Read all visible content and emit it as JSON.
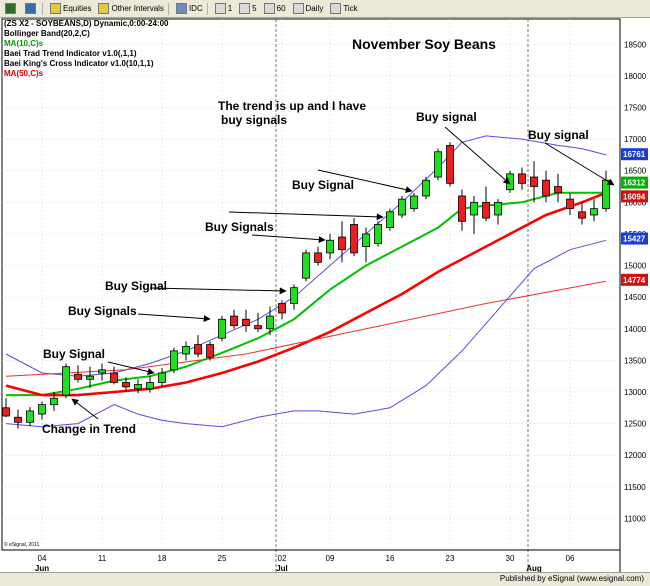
{
  "toolbar": {
    "items": [
      {
        "label": "",
        "icon": "back-arrow-icon"
      },
      {
        "label": "",
        "icon": "chart-icon"
      },
      {
        "label": "Equities",
        "icon": "folder-icon"
      },
      {
        "label": "Other Intervals",
        "icon": "folder-icon"
      },
      {
        "label": "IDC",
        "icon": "gear-icon"
      },
      {
        "label": "1",
        "icon": "clock-icon"
      },
      {
        "label": "5",
        "icon": "clock-icon"
      },
      {
        "label": "60",
        "icon": "clock-icon"
      },
      {
        "label": "Daily",
        "icon": "clock-icon"
      },
      {
        "label": "Tick",
        "icon": "clock-icon"
      }
    ]
  },
  "legend": [
    {
      "text": "(ZS X2 - SOYBEANS,D) Dynamic,0:00-24:00",
      "color": "#000000"
    },
    {
      "text": "Bollinger Band(20,2,C)",
      "color": "#000000"
    },
    {
      "text": "MA(10,C)s",
      "color": "#00a000"
    },
    {
      "text": "Baei Trad Trend Indicator v1.0(,1,1)",
      "color": "#000000"
    },
    {
      "text": "Baei King's Cross Indicator v1.0(10,1,1)",
      "color": "#000000"
    },
    {
      "text": "MA(50,C)s",
      "color": "#e00000"
    }
  ],
  "annotations": {
    "title": "November Soy Beans",
    "trend_note_1": "The trend is up and I have",
    "trend_note_2": "buy signals",
    "buy_signal_top": "Buy signal",
    "buy_signal_right": "Buy signal",
    "buy_signal_mid": "Buy Signal",
    "buy_signals_mid": "Buy Signals",
    "buy_signal_low": "Buy Signal",
    "buy_signals_low": "Buy Signals",
    "buy_signal_bottom": "Buy Signal",
    "change_in_trend": "Change in Trend"
  },
  "footer": {
    "copyright": "© eSignal, 2011",
    "publisher": "Published by eSignal (www.esignal.com)"
  },
  "chart_data": {
    "type": "candlestick",
    "title": "November Soy Beans",
    "ylim": [
      10500,
      18900
    ],
    "y_ticks": [
      11000,
      11500,
      12000,
      12500,
      13000,
      13500,
      14000,
      14500,
      15000,
      15500,
      16000,
      16500,
      17000,
      17500,
      18000,
      18500
    ],
    "y_tick_labels": [
      "11000",
      "11500",
      "12000",
      "12500",
      "13000",
      "13500",
      "14000",
      "14500",
      "15000",
      "15500",
      "16000",
      "16500",
      "17000",
      "17500",
      "18000",
      "18500"
    ],
    "x_day_labels": [
      {
        "index": 3,
        "label": "04"
      },
      {
        "index": 8,
        "label": "11"
      },
      {
        "index": 13,
        "label": "18"
      },
      {
        "index": 18,
        "label": "25"
      },
      {
        "index": 23,
        "label": "02"
      },
      {
        "index": 27,
        "label": "09"
      },
      {
        "index": 32,
        "label": "16"
      },
      {
        "index": 37,
        "label": "23"
      },
      {
        "index": 42,
        "label": "30"
      },
      {
        "index": 47,
        "label": "06"
      }
    ],
    "x_month_labels": [
      {
        "index": 3,
        "label": "Jun"
      },
      {
        "index": 23,
        "label": "Jul"
      },
      {
        "index": 44,
        "label": "Aug"
      }
    ],
    "month_separator_indices": [
      22.5,
      43.5
    ],
    "ohlc": [
      {
        "o": 12750,
        "h": 12900,
        "l": 12600,
        "c": 12620,
        "color": "red"
      },
      {
        "o": 12600,
        "h": 12720,
        "l": 12420,
        "c": 12520,
        "color": "red"
      },
      {
        "o": 12520,
        "h": 12760,
        "l": 12460,
        "c": 12700,
        "color": "green"
      },
      {
        "o": 12650,
        "h": 12850,
        "l": 12560,
        "c": 12800,
        "color": "green"
      },
      {
        "o": 12800,
        "h": 13000,
        "l": 12700,
        "c": 12900,
        "color": "green"
      },
      {
        "o": 12950,
        "h": 13450,
        "l": 12900,
        "c": 13400,
        "color": "green"
      },
      {
        "o": 13280,
        "h": 13420,
        "l": 13150,
        "c": 13200,
        "color": "red"
      },
      {
        "o": 13200,
        "h": 13400,
        "l": 13060,
        "c": 13250,
        "color": "green"
      },
      {
        "o": 13300,
        "h": 13450,
        "l": 13180,
        "c": 13350,
        "color": "green"
      },
      {
        "o": 13300,
        "h": 13400,
        "l": 13120,
        "c": 13150,
        "color": "red"
      },
      {
        "o": 13150,
        "h": 13230,
        "l": 13000,
        "c": 13080,
        "color": "red"
      },
      {
        "o": 13050,
        "h": 13200,
        "l": 12980,
        "c": 13120,
        "color": "green"
      },
      {
        "o": 13050,
        "h": 13250,
        "l": 12990,
        "c": 13150,
        "color": "green"
      },
      {
        "o": 13150,
        "h": 13380,
        "l": 13080,
        "c": 13300,
        "color": "green"
      },
      {
        "o": 13350,
        "h": 13700,
        "l": 13300,
        "c": 13650,
        "color": "green"
      },
      {
        "o": 13600,
        "h": 13800,
        "l": 13500,
        "c": 13720,
        "color": "green"
      },
      {
        "o": 13750,
        "h": 13900,
        "l": 13550,
        "c": 13600,
        "color": "red"
      },
      {
        "o": 13750,
        "h": 13800,
        "l": 13500,
        "c": 13550,
        "color": "red"
      },
      {
        "o": 13850,
        "h": 14200,
        "l": 13800,
        "c": 14150,
        "color": "green"
      },
      {
        "o": 14200,
        "h": 14300,
        "l": 14000,
        "c": 14050,
        "color": "red"
      },
      {
        "o": 14150,
        "h": 14300,
        "l": 13950,
        "c": 14050,
        "color": "red"
      },
      {
        "o": 14050,
        "h": 14250,
        "l": 13950,
        "c": 14000,
        "color": "red"
      },
      {
        "o": 14000,
        "h": 14350,
        "l": 13900,
        "c": 14200,
        "color": "green"
      },
      {
        "o": 14250,
        "h": 14450,
        "l": 14150,
        "c": 14400,
        "color": "red"
      },
      {
        "o": 14400,
        "h": 14700,
        "l": 14300,
        "c": 14650,
        "color": "green"
      },
      {
        "o": 14800,
        "h": 15250,
        "l": 14750,
        "c": 15200,
        "color": "green"
      },
      {
        "o": 15200,
        "h": 15300,
        "l": 15000,
        "c": 15050,
        "color": "red"
      },
      {
        "o": 15200,
        "h": 15500,
        "l": 15100,
        "c": 15400,
        "color": "green"
      },
      {
        "o": 15450,
        "h": 15700,
        "l": 15050,
        "c": 15250,
        "color": "red"
      },
      {
        "o": 15200,
        "h": 15750,
        "l": 15150,
        "c": 15650,
        "color": "red"
      },
      {
        "o": 15300,
        "h": 15600,
        "l": 15050,
        "c": 15500,
        "color": "green"
      },
      {
        "o": 15350,
        "h": 15700,
        "l": 15300,
        "c": 15650,
        "color": "green"
      },
      {
        "o": 15600,
        "h": 15900,
        "l": 15550,
        "c": 15850,
        "color": "green"
      },
      {
        "o": 15800,
        "h": 16100,
        "l": 15750,
        "c": 16050,
        "color": "green"
      },
      {
        "o": 15900,
        "h": 16150,
        "l": 15850,
        "c": 16100,
        "color": "green"
      },
      {
        "o": 16100,
        "h": 16400,
        "l": 16050,
        "c": 16350,
        "color": "green"
      },
      {
        "o": 16400,
        "h": 16850,
        "l": 16350,
        "c": 16800,
        "color": "green"
      },
      {
        "o": 16900,
        "h": 16950,
        "l": 16250,
        "c": 16300,
        "color": "red"
      },
      {
        "o": 16100,
        "h": 16200,
        "l": 15550,
        "c": 15700,
        "color": "red"
      },
      {
        "o": 15800,
        "h": 16100,
        "l": 15500,
        "c": 16000,
        "color": "green"
      },
      {
        "o": 16000,
        "h": 16250,
        "l": 15700,
        "c": 15750,
        "color": "red"
      },
      {
        "o": 15800,
        "h": 16050,
        "l": 15650,
        "c": 16000,
        "color": "green"
      },
      {
        "o": 16200,
        "h": 16500,
        "l": 16150,
        "c": 16450,
        "color": "green"
      },
      {
        "o": 16450,
        "h": 16550,
        "l": 16200,
        "c": 16300,
        "color": "red"
      },
      {
        "o": 16400,
        "h": 16650,
        "l": 16000,
        "c": 16250,
        "color": "red"
      },
      {
        "o": 16350,
        "h": 16500,
        "l": 16000,
        "c": 16100,
        "color": "red"
      },
      {
        "o": 16250,
        "h": 16450,
        "l": 16000,
        "c": 16150,
        "color": "red"
      },
      {
        "o": 16050,
        "h": 16150,
        "l": 15800,
        "c": 15900,
        "color": "red"
      },
      {
        "o": 15850,
        "h": 16000,
        "l": 15650,
        "c": 15750,
        "color": "red"
      },
      {
        "o": 15800,
        "h": 16050,
        "l": 15700,
        "c": 15900,
        "color": "green"
      },
      {
        "o": 15900,
        "h": 16500,
        "l": 15850,
        "c": 16350,
        "color": "green"
      }
    ],
    "series": [
      {
        "name": "MA(10,C)s",
        "color": "#00c000",
        "points": [
          [
            0,
            12950
          ],
          [
            3,
            12950
          ],
          [
            6,
            13050
          ],
          [
            9,
            13180
          ],
          [
            12,
            13250
          ],
          [
            15,
            13400
          ],
          [
            18,
            13620
          ],
          [
            21,
            13850
          ],
          [
            24,
            14150
          ],
          [
            27,
            14620
          ],
          [
            30,
            15000
          ],
          [
            33,
            15300
          ],
          [
            36,
            15600
          ],
          [
            38,
            15900
          ],
          [
            40,
            15950
          ],
          [
            43,
            16000
          ],
          [
            46,
            16150
          ],
          [
            50,
            16150
          ]
        ]
      },
      {
        "name": "MA(50,C)s",
        "color": "#ff0000",
        "points": [
          [
            0,
            13100
          ],
          [
            3,
            12950
          ],
          [
            6,
            12950
          ],
          [
            9,
            13000
          ],
          [
            12,
            13050
          ],
          [
            15,
            13150
          ],
          [
            18,
            13300
          ],
          [
            21,
            13480
          ],
          [
            24,
            13700
          ],
          [
            27,
            13950
          ],
          [
            30,
            14250
          ],
          [
            33,
            14550
          ],
          [
            36,
            14900
          ],
          [
            39,
            15200
          ],
          [
            42,
            15500
          ],
          [
            45,
            15800
          ],
          [
            48,
            16000
          ],
          [
            50,
            16150
          ]
        ]
      },
      {
        "name": "Bollinger upper",
        "color": "#5050e0",
        "points": [
          [
            0,
            13600
          ],
          [
            3,
            13300
          ],
          [
            6,
            13250
          ],
          [
            9,
            13300
          ],
          [
            12,
            13450
          ],
          [
            15,
            13650
          ],
          [
            18,
            13900
          ],
          [
            21,
            14150
          ],
          [
            24,
            14500
          ],
          [
            27,
            15000
          ],
          [
            30,
            15500
          ],
          [
            33,
            16000
          ],
          [
            36,
            16550
          ],
          [
            38,
            16950
          ],
          [
            40,
            17050
          ],
          [
            43,
            17000
          ],
          [
            46,
            16900
          ],
          [
            48,
            16850
          ],
          [
            50,
            16750
          ]
        ]
      },
      {
        "name": "Bollinger lower",
        "color": "#5050e0",
        "points": [
          [
            0,
            12500
          ],
          [
            3,
            12450
          ],
          [
            6,
            12500
          ],
          [
            9,
            12800
          ],
          [
            11,
            12650
          ],
          [
            13,
            12550
          ],
          [
            15,
            12500
          ],
          [
            18,
            12450
          ],
          [
            21,
            12600
          ],
          [
            24,
            12700
          ],
          [
            26,
            12700
          ],
          [
            29,
            12650
          ],
          [
            32,
            12750
          ],
          [
            35,
            13100
          ],
          [
            38,
            13650
          ],
          [
            41,
            14300
          ],
          [
            44,
            14950
          ],
          [
            47,
            15250
          ],
          [
            50,
            15400
          ]
        ]
      },
      {
        "name": "Long-term MA",
        "color": "#ee3333",
        "points": [
          [
            0,
            13250
          ],
          [
            10,
            13350
          ],
          [
            20,
            13600
          ],
          [
            30,
            14000
          ],
          [
            40,
            14400
          ],
          [
            50,
            14750
          ]
        ]
      }
    ],
    "price_tags": [
      {
        "value": 16761,
        "label": "16761",
        "color": "#1a3dd6"
      },
      {
        "value": 16312,
        "label": "16312",
        "color": "#00b000"
      },
      {
        "value": 16094,
        "label": "16094",
        "color": "#d01010"
      },
      {
        "value": 15427,
        "label": "15427",
        "color": "#1a3dd6"
      },
      {
        "value": 14774,
        "label": "14774",
        "color": "#d01010"
      }
    ]
  }
}
